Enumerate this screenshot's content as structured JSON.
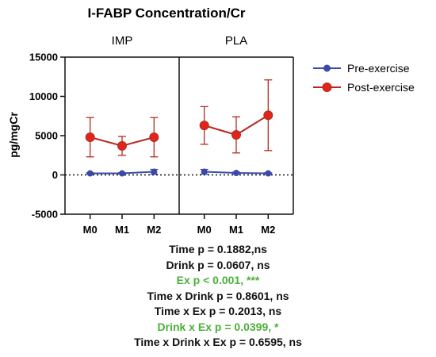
{
  "chart_data": {
    "type": "line",
    "title": "I-FABP Concentration/Cr",
    "ylabel": "pg/mgCr",
    "xlabel": "",
    "ylim": [
      -5000,
      15000
    ],
    "yticks": [
      -5000,
      0,
      5000,
      10000,
      15000
    ],
    "ytick_labels": [
      "-5000",
      "0",
      "5000",
      "10000",
      "15000"
    ],
    "categories": [
      "M0",
      "M1",
      "M2"
    ],
    "reference_line": 0,
    "legend_position": "top-right",
    "panels": [
      {
        "label": "IMP",
        "series": [
          {
            "name": "Pre-exercise",
            "color": "#3b4aa8",
            "values": [
              200,
              200,
              400
            ],
            "error": [
              80,
              80,
              300
            ]
          },
          {
            "name": "Post-exercise",
            "color": "#b52a1f",
            "values": [
              4800,
              3700,
              4800
            ],
            "error": [
              2500,
              1200,
              2500
            ]
          }
        ]
      },
      {
        "label": "PLA",
        "series": [
          {
            "name": "Pre-exercise",
            "color": "#3b4aa8",
            "values": [
              400,
              250,
              200
            ],
            "error": [
              300,
              100,
              80
            ]
          },
          {
            "name": "Post-exercise",
            "color": "#b52a1f",
            "values": [
              6300,
              5100,
              7600
            ],
            "error": [
              2400,
              2300,
              4500
            ]
          }
        ]
      }
    ],
    "annotations": [
      {
        "text": "Time p = 0.1882,ns",
        "color": "#111111"
      },
      {
        "text": "Drink p = 0.0607, ns",
        "color": "#111111"
      },
      {
        "text": "Ex p < 0.001, ***",
        "color": "#4caf3a"
      },
      {
        "text": "Time x Drink p = 0.8601, ns",
        "color": "#111111"
      },
      {
        "text": "Time x Ex  p = 0.2013, ns",
        "color": "#111111"
      },
      {
        "text": "Drink x Ex p = 0.0399, *",
        "color": "#4caf3a"
      },
      {
        "text": "Time x Drink x Ex p = 0.6595, ns",
        "color": "#111111"
      }
    ]
  }
}
